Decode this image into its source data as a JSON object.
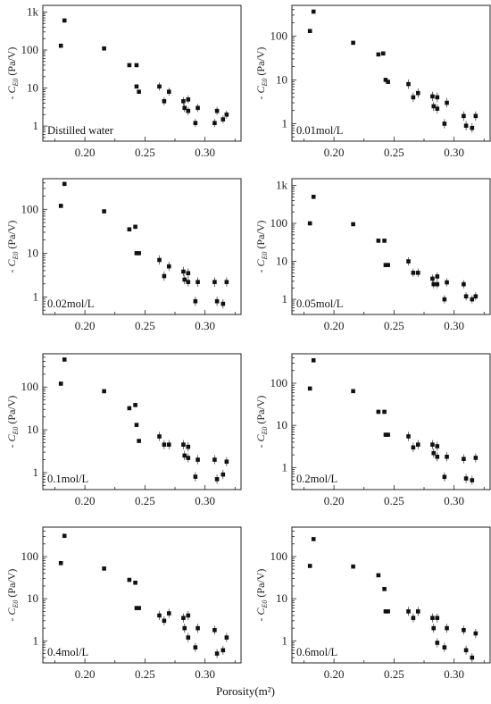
{
  "figure": {
    "xlabel": "Porosity(m²)"
  },
  "chart_data": [
    {
      "type": "scatter",
      "label": "Distilled water",
      "xlim": [
        0.165,
        0.33
      ],
      "ylim": [
        0.4,
        1500
      ],
      "yscale": "log",
      "xticks": [
        "0.20",
        "0.25",
        "0.30"
      ],
      "yticks": [
        "1",
        "10",
        "100",
        "1k"
      ],
      "ylabel": "- C",
      "points": [
        [
          0.18,
          130
        ],
        [
          0.183,
          600
        ],
        [
          0.216,
          110
        ],
        [
          0.237,
          40
        ],
        [
          0.243,
          40
        ],
        [
          0.243,
          11
        ],
        [
          0.245,
          8
        ],
        [
          0.262,
          11
        ],
        [
          0.266,
          4.5
        ],
        [
          0.27,
          8
        ],
        [
          0.282,
          4.5
        ],
        [
          0.283,
          3.0
        ],
        [
          0.286,
          5.0
        ],
        [
          0.286,
          2.5
        ],
        [
          0.292,
          1.2
        ],
        [
          0.294,
          3.0
        ],
        [
          0.308,
          1.2
        ],
        [
          0.31,
          2.5
        ],
        [
          0.315,
          1.5
        ],
        [
          0.318,
          2.0
        ]
      ]
    },
    {
      "type": "scatter",
      "label": "0.01mol/L",
      "xlim": [
        0.165,
        0.33
      ],
      "ylim": [
        0.4,
        500
      ],
      "yscale": "log",
      "xticks": [
        "0.20",
        "0.25",
        "0.30"
      ],
      "yticks": [
        "1",
        "10",
        "100"
      ],
      "ylabel": "- C",
      "points": [
        [
          0.18,
          130
        ],
        [
          0.183,
          360
        ],
        [
          0.216,
          70
        ],
        [
          0.237,
          38
        ],
        [
          0.241,
          40
        ],
        [
          0.243,
          10
        ],
        [
          0.245,
          9
        ],
        [
          0.262,
          8
        ],
        [
          0.266,
          4
        ],
        [
          0.27,
          5
        ],
        [
          0.282,
          4.2
        ],
        [
          0.283,
          2.5
        ],
        [
          0.286,
          4.0
        ],
        [
          0.286,
          2.2
        ],
        [
          0.292,
          1.0
        ],
        [
          0.294,
          3.0
        ],
        [
          0.308,
          1.5
        ],
        [
          0.31,
          0.9
        ],
        [
          0.315,
          0.8
        ],
        [
          0.318,
          1.5
        ]
      ]
    },
    {
      "type": "scatter",
      "label": "0.02mol/L",
      "xlim": [
        0.165,
        0.33
      ],
      "ylim": [
        0.4,
        500
      ],
      "yscale": "log",
      "xticks": [
        "0.20",
        "0.25",
        "0.30"
      ],
      "yticks": [
        "1",
        "10",
        "100"
      ],
      "ylabel": "- C",
      "points": [
        [
          0.18,
          120
        ],
        [
          0.183,
          380
        ],
        [
          0.216,
          90
        ],
        [
          0.237,
          35
        ],
        [
          0.242,
          40
        ],
        [
          0.243,
          10
        ],
        [
          0.245,
          10
        ],
        [
          0.262,
          7
        ],
        [
          0.266,
          3
        ],
        [
          0.27,
          5
        ],
        [
          0.282,
          3.8
        ],
        [
          0.283,
          2.5
        ],
        [
          0.286,
          3.5
        ],
        [
          0.286,
          2.2
        ],
        [
          0.292,
          0.8
        ],
        [
          0.294,
          2.2
        ],
        [
          0.308,
          2.2
        ],
        [
          0.31,
          0.8
        ],
        [
          0.315,
          0.7
        ],
        [
          0.318,
          2.2
        ]
      ]
    },
    {
      "type": "scatter",
      "label": "0.05mol/L",
      "xlim": [
        0.165,
        0.33
      ],
      "ylim": [
        0.4,
        1500
      ],
      "yscale": "log",
      "xticks": [
        "0.20",
        "0.25",
        "0.30"
      ],
      "yticks": [
        "1",
        "10",
        "100",
        "1k"
      ],
      "ylabel": "- C",
      "points": [
        [
          0.18,
          100
        ],
        [
          0.183,
          500
        ],
        [
          0.216,
          95
        ],
        [
          0.237,
          35
        ],
        [
          0.242,
          35
        ],
        [
          0.243,
          8
        ],
        [
          0.245,
          8
        ],
        [
          0.262,
          10
        ],
        [
          0.266,
          5
        ],
        [
          0.27,
          5
        ],
        [
          0.282,
          3.5
        ],
        [
          0.283,
          2.5
        ],
        [
          0.286,
          4.0
        ],
        [
          0.286,
          2.5
        ],
        [
          0.292,
          1.0
        ],
        [
          0.294,
          2.8
        ],
        [
          0.308,
          2.5
        ],
        [
          0.31,
          1.2
        ],
        [
          0.315,
          1.0
        ],
        [
          0.318,
          1.2
        ]
      ]
    },
    {
      "type": "scatter",
      "label": "0.1mol/L",
      "xlim": [
        0.165,
        0.33
      ],
      "ylim": [
        0.4,
        600
      ],
      "yscale": "log",
      "xticks": [
        "0.20",
        "0.25",
        "0.30"
      ],
      "yticks": [
        "1",
        "10",
        "100"
      ],
      "ylabel": "- C",
      "points": [
        [
          0.18,
          120
        ],
        [
          0.183,
          440
        ],
        [
          0.216,
          80
        ],
        [
          0.237,
          32
        ],
        [
          0.242,
          38
        ],
        [
          0.243,
          13
        ],
        [
          0.245,
          5.5
        ],
        [
          0.262,
          7
        ],
        [
          0.266,
          4.5
        ],
        [
          0.27,
          4.5
        ],
        [
          0.282,
          4.5
        ],
        [
          0.283,
          2.5
        ],
        [
          0.286,
          4.0
        ],
        [
          0.286,
          2.2
        ],
        [
          0.292,
          0.8
        ],
        [
          0.294,
          2.0
        ],
        [
          0.308,
          2.0
        ],
        [
          0.31,
          0.7
        ],
        [
          0.315,
          0.9
        ],
        [
          0.318,
          1.8
        ]
      ]
    },
    {
      "type": "scatter",
      "label": "0.2mol/L",
      "xlim": [
        0.165,
        0.33
      ],
      "ylim": [
        0.3,
        500
      ],
      "yscale": "log",
      "xticks": [
        "0.20",
        "0.25",
        "0.30"
      ],
      "yticks": [
        "1",
        "10",
        "100"
      ],
      "ylabel": "- C",
      "points": [
        [
          0.18,
          75
        ],
        [
          0.183,
          350
        ],
        [
          0.216,
          65
        ],
        [
          0.237,
          21
        ],
        [
          0.242,
          21
        ],
        [
          0.243,
          6
        ],
        [
          0.245,
          6
        ],
        [
          0.262,
          5.5
        ],
        [
          0.266,
          3
        ],
        [
          0.27,
          3.5
        ],
        [
          0.282,
          3.5
        ],
        [
          0.283,
          2.2
        ],
        [
          0.286,
          3.2
        ],
        [
          0.286,
          1.8
        ],
        [
          0.292,
          0.6
        ],
        [
          0.294,
          1.8
        ],
        [
          0.308,
          1.6
        ],
        [
          0.31,
          0.55
        ],
        [
          0.315,
          0.5
        ],
        [
          0.318,
          1.7
        ]
      ]
    },
    {
      "type": "scatter",
      "label": "0.4mol/L",
      "xlim": [
        0.165,
        0.33
      ],
      "ylim": [
        0.3,
        500
      ],
      "yscale": "log",
      "xticks": [
        "0.20",
        "0.25",
        "0.30"
      ],
      "yticks": [
        "1",
        "10",
        "100"
      ],
      "ylabel": "- C",
      "points": [
        [
          0.18,
          70
        ],
        [
          0.183,
          310
        ],
        [
          0.216,
          52
        ],
        [
          0.237,
          28
        ],
        [
          0.242,
          24
        ],
        [
          0.243,
          6
        ],
        [
          0.245,
          6
        ],
        [
          0.262,
          4
        ],
        [
          0.266,
          3
        ],
        [
          0.27,
          4.5
        ],
        [
          0.282,
          3.5
        ],
        [
          0.283,
          2.0
        ],
        [
          0.286,
          4.0
        ],
        [
          0.286,
          1.2
        ],
        [
          0.292,
          0.7
        ],
        [
          0.294,
          2.0
        ],
        [
          0.308,
          1.8
        ],
        [
          0.31,
          0.5
        ],
        [
          0.315,
          0.6
        ],
        [
          0.318,
          1.2
        ]
      ]
    },
    {
      "type": "scatter",
      "label": "0.6mol/L",
      "xlim": [
        0.165,
        0.33
      ],
      "ylim": [
        0.3,
        500
      ],
      "yscale": "log",
      "xticks": [
        "0.20",
        "0.25",
        "0.30"
      ],
      "yticks": [
        "1",
        "10",
        "100"
      ],
      "ylabel": "- C",
      "points": [
        [
          0.18,
          60
        ],
        [
          0.183,
          260
        ],
        [
          0.216,
          58
        ],
        [
          0.237,
          36
        ],
        [
          0.242,
          17
        ],
        [
          0.243,
          5
        ],
        [
          0.245,
          5
        ],
        [
          0.262,
          5
        ],
        [
          0.266,
          3.5
        ],
        [
          0.27,
          5
        ],
        [
          0.282,
          3.5
        ],
        [
          0.283,
          2.0
        ],
        [
          0.286,
          3.5
        ],
        [
          0.286,
          0.9
        ],
        [
          0.292,
          0.7
        ],
        [
          0.294,
          2.0
        ],
        [
          0.308,
          1.8
        ],
        [
          0.31,
          0.6
        ],
        [
          0.315,
          0.4
        ],
        [
          0.318,
          1.5
        ]
      ]
    }
  ]
}
